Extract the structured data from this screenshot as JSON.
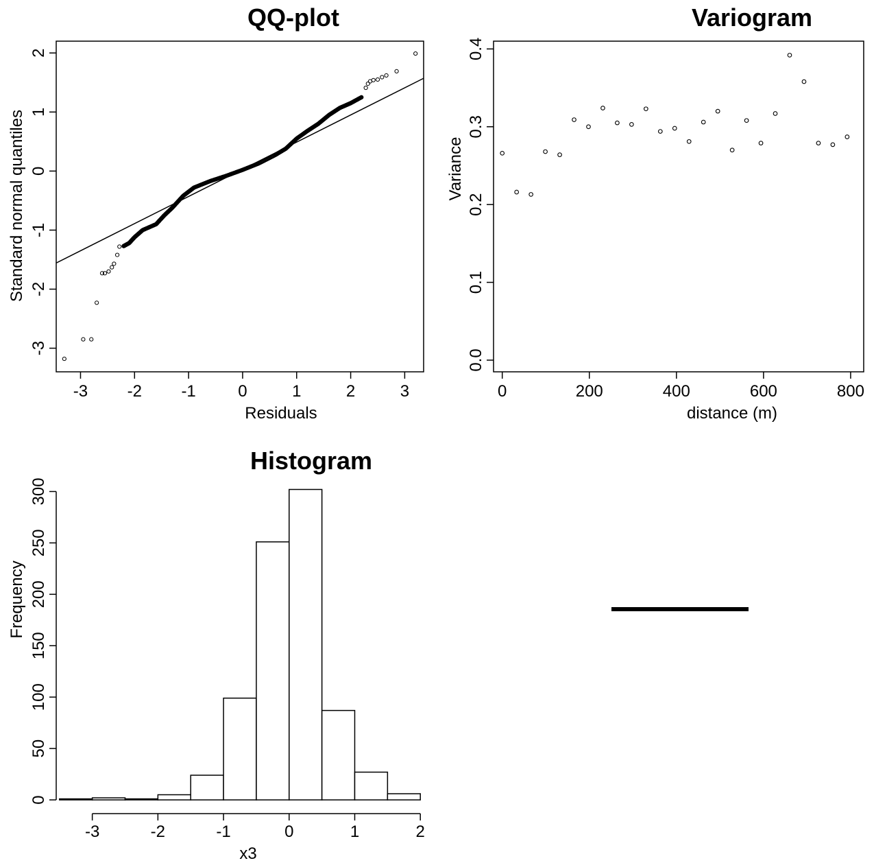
{
  "chart_data": [
    {
      "type": "scatter",
      "title": "QQ-plot",
      "xlabel": "Residuals",
      "ylabel": "Standard normal quantiles",
      "xlim": [
        -3.45,
        3.35
      ],
      "ylim": [
        -3.4,
        2.2
      ],
      "xticks": [
        "-3",
        "-2",
        "-1",
        "0",
        "1",
        "2",
        "3"
      ],
      "yticks": [
        "-3",
        "-2",
        "-1",
        "0",
        "1",
        "2"
      ],
      "reference_line": {
        "intercept": 0.03,
        "slope": 0.46
      },
      "tail_points": [
        [
          -3.3,
          -3.18
        ],
        [
          -2.95,
          -2.85
        ],
        [
          -2.8,
          -2.85
        ],
        [
          -2.7,
          -2.23
        ],
        [
          -2.6,
          -1.73
        ],
        [
          -2.55,
          -1.73
        ],
        [
          -2.48,
          -1.7
        ],
        [
          -2.42,
          -1.63
        ],
        [
          -2.38,
          -1.57
        ],
        [
          -2.32,
          -1.42
        ],
        [
          -2.28,
          -1.28
        ],
        [
          -2.2,
          -1.27
        ],
        [
          2.2,
          1.25
        ],
        [
          2.28,
          1.41
        ],
        [
          2.32,
          1.48
        ],
        [
          2.36,
          1.52
        ],
        [
          2.42,
          1.54
        ],
        [
          2.5,
          1.55
        ],
        [
          2.58,
          1.59
        ],
        [
          2.66,
          1.62
        ],
        [
          2.85,
          1.69
        ],
        [
          3.2,
          1.99
        ]
      ],
      "body_curve": [
        [
          -2.2,
          -1.27
        ],
        [
          -2.1,
          -1.22
        ],
        [
          -2.0,
          -1.12
        ],
        [
          -1.85,
          -1.0
        ],
        [
          -1.6,
          -0.9
        ],
        [
          -1.45,
          -0.75
        ],
        [
          -1.3,
          -0.62
        ],
        [
          -1.1,
          -0.42
        ],
        [
          -0.9,
          -0.28
        ],
        [
          -0.6,
          -0.17
        ],
        [
          -0.3,
          -0.08
        ],
        [
          0,
          0.02
        ],
        [
          0.3,
          0.13
        ],
        [
          0.6,
          0.27
        ],
        [
          0.8,
          0.38
        ],
        [
          1.0,
          0.55
        ],
        [
          1.2,
          0.68
        ],
        [
          1.4,
          0.8
        ],
        [
          1.6,
          0.95
        ],
        [
          1.8,
          1.07
        ],
        [
          2.0,
          1.15
        ],
        [
          2.2,
          1.25
        ]
      ]
    },
    {
      "type": "scatter",
      "title": "Variogram",
      "xlabel": "distance (m)",
      "ylabel": "Variance",
      "xlim": [
        -20,
        830
      ],
      "ylim": [
        -0.015,
        0.41
      ],
      "xticks": [
        "0",
        "200",
        "400",
        "600",
        "800"
      ],
      "yticks": [
        "0.0",
        "0.1",
        "0.2",
        "0.3",
        "0.4"
      ],
      "x": [
        0,
        33,
        66,
        99,
        132,
        165,
        198,
        231,
        264,
        297,
        330,
        363,
        396,
        429,
        462,
        495,
        528,
        561,
        594,
        627,
        660,
        693,
        726,
        759,
        792
      ],
      "y": [
        0.266,
        0.216,
        0.213,
        0.268,
        0.264,
        0.309,
        0.3,
        0.324,
        0.305,
        0.303,
        0.323,
        0.294,
        0.298,
        0.281,
        0.306,
        0.32,
        0.27,
        0.308,
        0.279,
        0.317,
        0.392,
        0.358,
        0.279,
        0.277,
        0.287
      ]
    },
    {
      "type": "bar",
      "subtype": "histogram",
      "title": "Histogram",
      "xlabel": "x3",
      "ylabel": "Frequency",
      "xlim": [
        -3.55,
        2.05
      ],
      "ylim": [
        0,
        315
      ],
      "xticks": [
        "-3",
        "-2",
        "-1",
        "0",
        "1",
        "2"
      ],
      "yticks": [
        "0",
        "50",
        "100",
        "150",
        "200",
        "250",
        "300"
      ],
      "bins": [
        -3.5,
        -3.0,
        -2.5,
        -2.0,
        -1.5,
        -1.0,
        -0.5,
        0.0,
        0.5,
        1.0,
        1.5,
        2.0
      ],
      "counts": [
        1,
        2,
        1,
        5,
        24,
        99,
        251,
        302,
        87,
        27,
        6
      ]
    }
  ]
}
